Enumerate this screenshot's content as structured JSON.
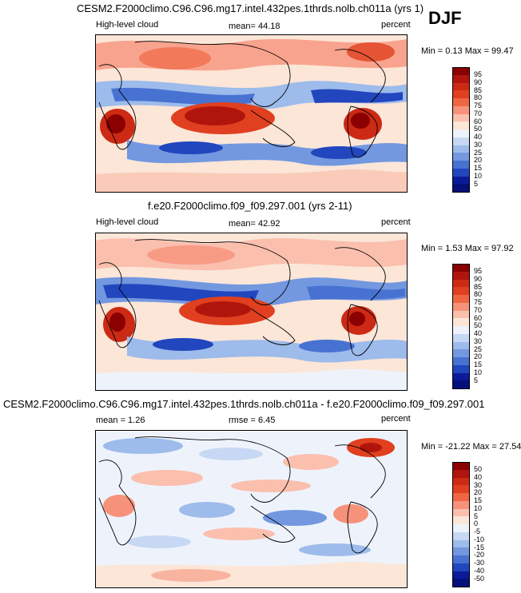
{
  "season": "DJF",
  "panels": [
    {
      "title": "CESM2.F2000climo.C96.C96.mg17.intel.432pes.1thrds.nolb.ch011a (yrs 1)",
      "left_label": "High-level cloud",
      "center_label": "mean=  44.18",
      "right_label": "percent",
      "minmax": "Min =   0.13 Max =  99.47",
      "colorbar": {
        "labels": [
          "95",
          "90",
          "85",
          "80",
          "75",
          "70",
          "60",
          "50",
          "40",
          "30",
          "25",
          "20",
          "15",
          "10",
          "5"
        ],
        "colors": [
          "#8b0000",
          "#b0150d",
          "#cc2a14",
          "#e0401f",
          "#ef6644",
          "#f7927a",
          "#fbbfae",
          "#fbe6d8",
          "#eef3fb",
          "#c6d8f3",
          "#9dbbeb",
          "#7398e0",
          "#4872d2",
          "#2146be",
          "#0a1a9a",
          "#05107a"
        ]
      }
    },
    {
      "title": "f.e20.F2000climo.f09_f09.297.001 (yrs 2-11)",
      "left_label": "High-level cloud",
      "center_label": "mean=  42.92",
      "right_label": "percent",
      "minmax": "Min =   1.53 Max =  97.92",
      "colorbar": {
        "labels": [
          "95",
          "90",
          "85",
          "80",
          "75",
          "70",
          "60",
          "50",
          "40",
          "30",
          "25",
          "20",
          "15",
          "10",
          "5"
        ],
        "colors": [
          "#8b0000",
          "#b0150d",
          "#cc2a14",
          "#e0401f",
          "#ef6644",
          "#f7927a",
          "#fbbfae",
          "#fbe6d8",
          "#eef3fb",
          "#c6d8f3",
          "#9dbbeb",
          "#7398e0",
          "#4872d2",
          "#2146be",
          "#0a1a9a",
          "#05107a"
        ]
      }
    },
    {
      "title": "CESM2.F2000climo.C96.C96.mg17.intel.432pes.1thrds.nolb.ch011a - f.e20.F2000climo.f09_f09.297.001",
      "left_label": "mean =   1.26",
      "center_label": "rmse =   6.45",
      "right_label": "percent",
      "minmax": "Min = -21.22 Max =  27.54",
      "colorbar": {
        "labels": [
          "50",
          "40",
          "30",
          "20",
          "15",
          "10",
          "5",
          "0",
          "-5",
          "-10",
          "-15",
          "-20",
          "-30",
          "-40",
          "-50"
        ],
        "colors": [
          "#8b0000",
          "#b0150d",
          "#cc2a14",
          "#e0401f",
          "#ef6644",
          "#f7927a",
          "#fbbfae",
          "#fbe6d8",
          "#eef3fb",
          "#c6d8f3",
          "#9dbbeb",
          "#7398e0",
          "#4872d2",
          "#2146be",
          "#0a1a9a",
          "#05107a"
        ]
      }
    }
  ]
}
